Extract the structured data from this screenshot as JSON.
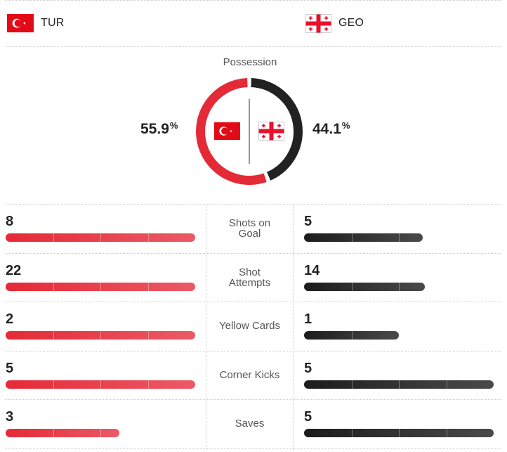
{
  "teams": {
    "home": {
      "code": "TUR",
      "possession_value": "55.9",
      "possession_unit": "%",
      "color": "#e52a37"
    },
    "away": {
      "code": "GEO",
      "possession_value": "44.1",
      "possession_unit": "%",
      "color": "#222222"
    }
  },
  "possession": {
    "title": "Possession",
    "home_fraction": 0.559,
    "away_fraction": 0.441
  },
  "stats": [
    {
      "label_lines": [
        "Shots on",
        "Goal"
      ],
      "home": "8",
      "away": "5",
      "max": 8
    },
    {
      "label_lines": [
        "Shot",
        "Attempts"
      ],
      "home": "22",
      "away": "14",
      "max": 22
    },
    {
      "label_lines": [
        "Yellow Cards"
      ],
      "home": "2",
      "away": "1",
      "max": 2
    },
    {
      "label_lines": [
        "Corner Kicks"
      ],
      "home": "5",
      "away": "5",
      "max": 5
    },
    {
      "label_lines": [
        "Saves"
      ],
      "home": "3",
      "away": "5",
      "max": 5
    }
  ]
}
